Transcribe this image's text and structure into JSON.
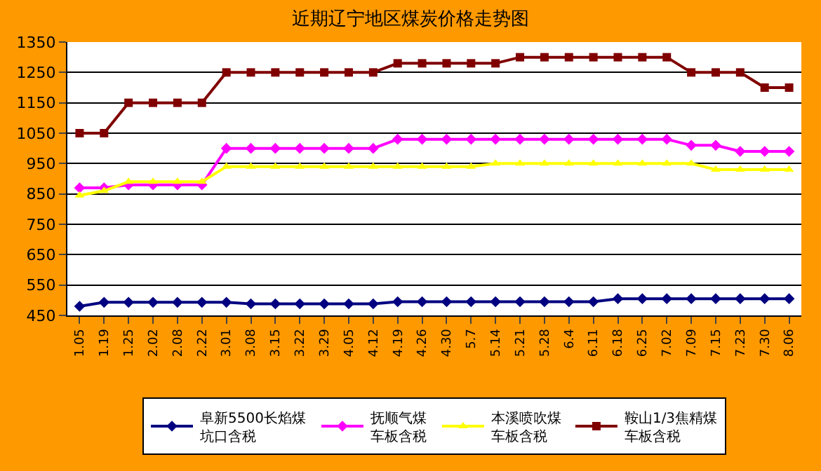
{
  "chart_data": {
    "type": "line",
    "title": "近期辽宁地区煤炭价格走势图",
    "categories": [
      "1.05",
      "1.19",
      "1.25",
      "2.02",
      "2.08",
      "2.22",
      "3.01",
      "3.08",
      "3.15",
      "3.22",
      "3.29",
      "4.05",
      "4.12",
      "4.19",
      "4.26",
      "4.30",
      "5.7",
      "5.14",
      "5.21",
      "5.28",
      "6.4",
      "6.11",
      "6.18",
      "6.25",
      "7.02",
      "7.09",
      "7.15",
      "7.23",
      "7.30",
      "8.06"
    ],
    "series": [
      {
        "name": "阜新5500长焰煤坑口含税",
        "color": "#000080",
        "marker": "diamond",
        "values": [
          480,
          493,
          493,
          493,
          493,
          493,
          493,
          488,
          488,
          488,
          488,
          488,
          488,
          495,
          495,
          495,
          495,
          495,
          495,
          495,
          495,
          495,
          505,
          505,
          505,
          505,
          505,
          505,
          505,
          505
        ]
      },
      {
        "name": "抚顺气煤车板含税",
        "color": "#ff00ff",
        "marker": "diamond",
        "values": [
          870,
          870,
          880,
          880,
          880,
          880,
          1000,
          1000,
          1000,
          1000,
          1000,
          1000,
          1000,
          1030,
          1030,
          1030,
          1030,
          1030,
          1030,
          1030,
          1030,
          1030,
          1030,
          1030,
          1030,
          1010,
          1010,
          990,
          990,
          990
        ]
      },
      {
        "name": "本溪喷吹煤车板含税",
        "color": "#ffff00",
        "marker": "triangle",
        "values": [
          845,
          860,
          890,
          890,
          890,
          890,
          940,
          940,
          940,
          940,
          940,
          940,
          940,
          940,
          940,
          940,
          940,
          950,
          950,
          950,
          950,
          950,
          950,
          950,
          950,
          950,
          930,
          930,
          930,
          930
        ]
      },
      {
        "name": "鞍山1/3焦精煤车板含税",
        "color": "#800000",
        "marker": "square",
        "values": [
          1050,
          1050,
          1150,
          1150,
          1150,
          1150,
          1250,
          1250,
          1250,
          1250,
          1250,
          1250,
          1250,
          1280,
          1280,
          1280,
          1280,
          1280,
          1300,
          1300,
          1300,
          1300,
          1300,
          1300,
          1300,
          1250,
          1250,
          1250,
          1200,
          1200
        ]
      }
    ],
    "ylim": [
      450,
      1350
    ],
    "yticks": [
      450,
      550,
      650,
      750,
      850,
      950,
      1050,
      1150,
      1250,
      1350
    ],
    "grid": "y",
    "legend": "bottom",
    "line_style": "solid"
  }
}
